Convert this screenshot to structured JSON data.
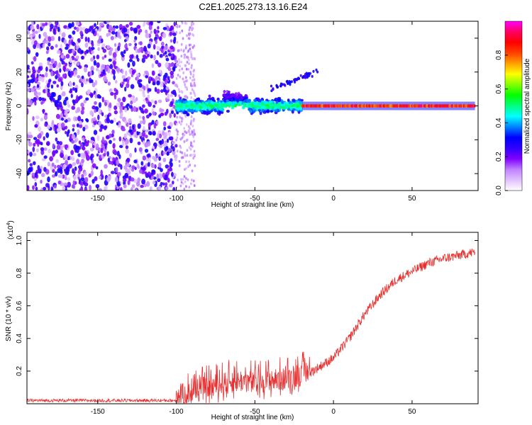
{
  "title": "C2E1.2025.273.13.16.E24",
  "chart_data": [
    {
      "type": "heatmap",
      "title": "C2E1.2025.273.13.16.E24",
      "xlabel": "Height of straight line (km)",
      "ylabel": "Frequency (Hz)",
      "xlim": [
        -195,
        92
      ],
      "ylim": [
        -50,
        50
      ],
      "xticks": [
        -150,
        -100,
        -50,
        0,
        50
      ],
      "yticks": [
        -40,
        -20,
        0,
        20,
        40
      ],
      "colorbar": {
        "label": "Normalized spectral amplitude",
        "range": [
          0,
          1
        ],
        "ticks": [
          "0.0",
          "0.2",
          "0.4",
          "0.6",
          "0.8"
        ],
        "colors": [
          "#ffffff",
          "#e0c0ff",
          "#c080ff",
          "#8000ff",
          "#3000ff",
          "#0000ff",
          "#0080ff",
          "#00ffff",
          "#00ff80",
          "#00ff00",
          "#80ff00",
          "#ffff00",
          "#ffa000",
          "#ff4000",
          "#ff0000",
          "#ff0060",
          "#ff00ff"
        ]
      },
      "regions": [
        {
          "name": "noise",
          "x": [
            -195,
            -100
          ],
          "freq": [
            -50,
            50
          ],
          "amplitude": [
            0.05,
            0.3
          ]
        },
        {
          "name": "broadband",
          "x": [
            -100,
            -20
          ],
          "freq_center": 0,
          "freq_halfwidth": 8,
          "amplitude": [
            0.2,
            0.5
          ]
        },
        {
          "name": "carrier",
          "x": [
            -20,
            90
          ],
          "freq": 0,
          "amplitude": [
            0.75,
            0.95
          ]
        }
      ]
    },
    {
      "type": "line",
      "title": "",
      "xlabel": "Height of straight line (km)",
      "ylabel": "SNR (10 * v/v)",
      "scale_label": "(x10",
      "scale_exp": "4",
      "xlim": [
        -195,
        92
      ],
      "ylim": [
        0,
        1.05
      ],
      "xticks": [
        -150,
        -100,
        -50,
        0,
        50
      ],
      "yticks": [
        "0.2",
        "0.4",
        "0.6",
        "0.8",
        "1.0"
      ],
      "series": [
        {
          "name": "SNR",
          "color": "#e83030",
          "x": [
            -195,
            -150,
            -100,
            -90,
            -80,
            -70,
            -60,
            -50,
            -40,
            -30,
            -20,
            -10,
            0,
            10,
            20,
            30,
            40,
            50,
            60,
            70,
            80,
            90
          ],
          "y": [
            0.02,
            0.02,
            0.02,
            0.05,
            0.08,
            0.1,
            0.12,
            0.11,
            0.12,
            0.13,
            0.16,
            0.22,
            0.28,
            0.4,
            0.55,
            0.67,
            0.76,
            0.81,
            0.86,
            0.89,
            0.91,
            0.93
          ]
        }
      ]
    }
  ]
}
